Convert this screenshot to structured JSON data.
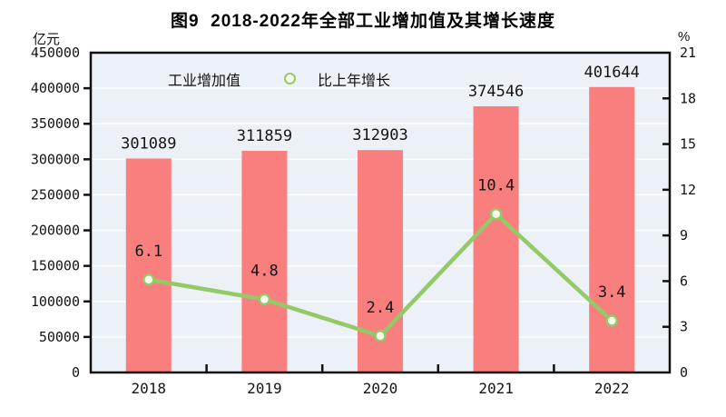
{
  "chart_data": {
    "type": "bar+line",
    "title": "图9  2018-2022年全部工业增加值及其增长速度",
    "categories": [
      "2018",
      "2019",
      "2020",
      "2021",
      "2022"
    ],
    "series": [
      {
        "name": "工业增加值",
        "type": "bar",
        "axis": "left",
        "values": [
          301089,
          311859,
          312903,
          374546,
          401644
        ],
        "color": "#f97e7e"
      },
      {
        "name": "比上年增长",
        "type": "line",
        "axis": "right",
        "values": [
          6.1,
          4.8,
          2.4,
          10.4,
          3.4
        ],
        "color": "#93c966",
        "marker_fill": "#fdfef2"
      }
    ],
    "left_axis": {
      "unit": "亿元",
      "min": 0,
      "max": 450000,
      "tick_interval": 50000,
      "ticks": [
        "0",
        "50000",
        "100000",
        "150000",
        "200000",
        "250000",
        "300000",
        "350000",
        "400000",
        "450000"
      ]
    },
    "right_axis": {
      "unit": "%",
      "min": 0,
      "max": 21,
      "tick_interval": 3,
      "ticks": [
        "0",
        "3",
        "6",
        "9",
        "12",
        "15",
        "18",
        "21"
      ]
    },
    "legend_position": "top-left-inside",
    "grid": true,
    "colors": {
      "plot_background": "#ebf1f6",
      "gridline": "#fbfdff",
      "axis": "#111111",
      "text": "#141414"
    }
  }
}
